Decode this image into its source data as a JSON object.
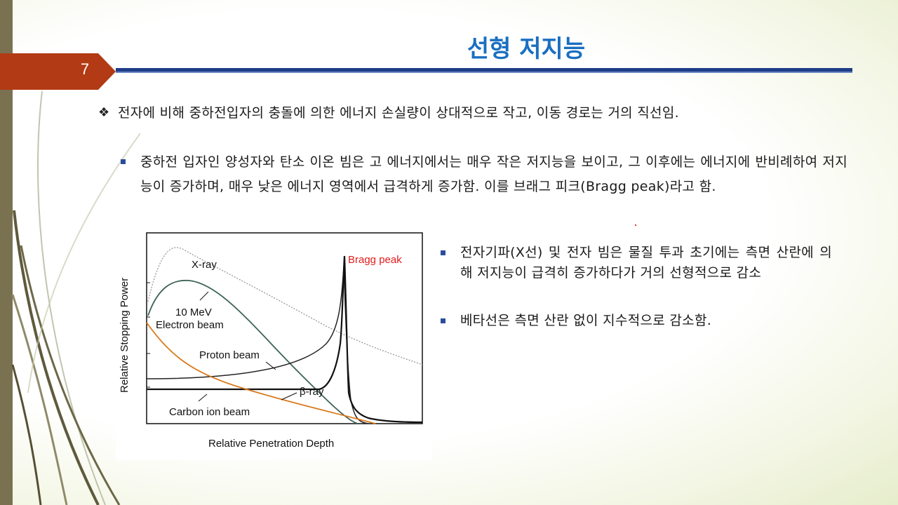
{
  "slide": {
    "number": "7",
    "title": "선형 저지능"
  },
  "bullets": {
    "main": "전자에 비해 중하전입자의 충돌에 의한 에너지 손실량이 상대적으로 작고, 이동 경로는 거의 직선임.",
    "sub1": "중하전 입자인 양성자와 탄소 이온 빔은 고 에너지에서는 매우 작은 저지능을 보이고, 그 이후에는 에너지에 반비례하여 저지능이 증가하며, 매우 낮은 에너지 영역에서 급격하게 증가함. 이를 브래그 피크(Bragg peak)라고 함.",
    "sub2": "전자기파(X선) 및 전자 빔은 물질 투과 초기에는 측면 산란에 의해 저지능이 급격히 증가하다가 거의 선형적으로 감소",
    "sub3": "베타선은 측면 산란 없이 지수적으로 감소함."
  },
  "chart_data": {
    "type": "line",
    "xlabel": "Relative Penetration Depth",
    "ylabel": "Relative Stopping Power",
    "grid": false,
    "annotations": {
      "xray": "X-ray",
      "bragg": "Bragg peak",
      "electron_energy": "10 MeV",
      "electron": "Electron beam",
      "proton": "Proton beam",
      "beta": "β-ray",
      "carbon": "Carbon ion beam"
    },
    "series": [
      {
        "name": "X-ray",
        "color": "#999999"
      },
      {
        "name": "Electron beam",
        "color": "#3c6356"
      },
      {
        "name": "Proton beam",
        "color": "#222222"
      },
      {
        "name": "Carbon ion beam",
        "color": "#111111"
      },
      {
        "name": "β-ray",
        "color": "#d97a1c"
      }
    ]
  }
}
